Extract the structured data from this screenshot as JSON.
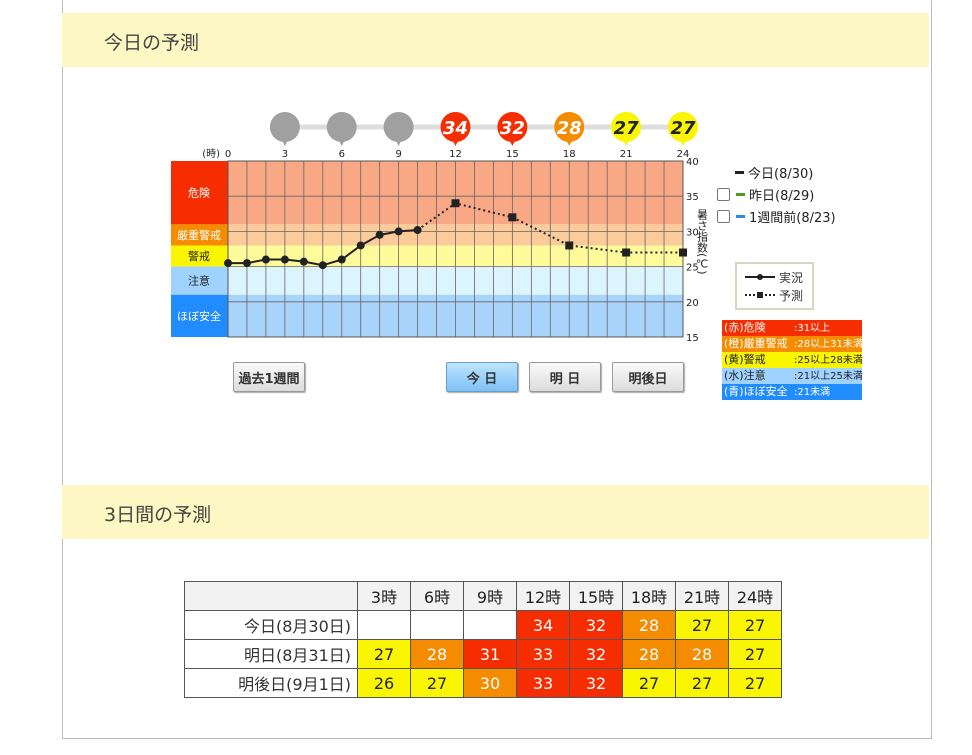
{
  "sections": {
    "today_title": "今日の予測",
    "three_day_title": "3日間の予測"
  },
  "chart": {
    "hour_unit": "(時)",
    "hour_ticks": [
      "0",
      "3",
      "6",
      "9",
      "12",
      "15",
      "18",
      "21",
      "24"
    ],
    "bubble_values": [
      "",
      "",
      "",
      "34",
      "32",
      "28",
      "27",
      "27"
    ],
    "bubble_colors": [
      "#a0a0a0",
      "#a0a0a0",
      "#a0a0a0",
      "#f52d00",
      "#f52d00",
      "#f58c00",
      "#faf500",
      "#faf500"
    ],
    "y_ticks": [
      "40",
      "35",
      "30",
      "25",
      "20",
      "15"
    ],
    "y_axis_label": "暑さ指数(℃)",
    "levels": [
      {
        "label": "危険",
        "color": "#f52d00",
        "band": "#f9a886"
      },
      {
        "label": "厳重警戒",
        "color": "#f58c00",
        "band": "#fbcb99"
      },
      {
        "label": "警戒",
        "color": "#faf500",
        "band": "#fffb9a"
      },
      {
        "label": "注意",
        "color": "#a0d2ff",
        "band": "#dcf4fc"
      },
      {
        "label": "ほぼ安全",
        "color": "#218cff",
        "band": "#a8d3fa"
      }
    ]
  },
  "chart_data": {
    "type": "line",
    "xlabel": "(時)",
    "ylabel": "暑さ指数(℃)",
    "xlim": [
      0,
      24
    ],
    "ylim": [
      15,
      40
    ],
    "series": [
      {
        "name": "実況",
        "x": [
          0,
          1,
          2,
          3,
          4,
          5,
          6,
          7,
          8,
          9,
          10
        ],
        "y": [
          25.5,
          25.5,
          26,
          26,
          25.7,
          25.2,
          26,
          28,
          29.5,
          30,
          30.2
        ]
      },
      {
        "name": "予測",
        "x": [
          10,
          12,
          15,
          18,
          21,
          24
        ],
        "y": [
          30.2,
          34,
          32,
          28,
          27,
          27
        ]
      }
    ]
  },
  "legend": {
    "today": "今日(8/30)",
    "yesterday": "昨日(8/29)",
    "week_ago": "1週間前(8/23)",
    "actual": "実況",
    "forecast": "予測"
  },
  "level_key": [
    {
      "name": "(赤)危険",
      "range": ":31以上",
      "color": "#f52d00"
    },
    {
      "name": "(橙)厳重警戒",
      "range": ":28以上31未満",
      "color": "#f58c00"
    },
    {
      "name": "(黄)警戒",
      "range": ":25以上28未満",
      "color": "#faf500"
    },
    {
      "name": "(水)注意",
      "range": ":21以上25未満",
      "color": "#a0d2ff"
    },
    {
      "name": "(青)ほぼ安全",
      "range": ":21未満",
      "color": "#218cff"
    }
  ],
  "buttons": {
    "past_week": "過去1週間",
    "today": "今 日",
    "tomorrow": "明 日",
    "day_after": "明後日"
  },
  "table": {
    "headers": [
      "3時",
      "6時",
      "9時",
      "12時",
      "15時",
      "18時",
      "21時",
      "24時"
    ],
    "rows": [
      {
        "label": "今日(8月30日)",
        "values": [
          "",
          "",
          "",
          "34",
          "32",
          "28",
          "27",
          "27"
        ]
      },
      {
        "label": "明日(8月31日)",
        "values": [
          "27",
          "28",
          "31",
          "33",
          "32",
          "28",
          "28",
          "27"
        ]
      },
      {
        "label": "明後日(9月1日)",
        "values": [
          "26",
          "27",
          "30",
          "33",
          "32",
          "27",
          "27",
          "27"
        ]
      }
    ]
  }
}
